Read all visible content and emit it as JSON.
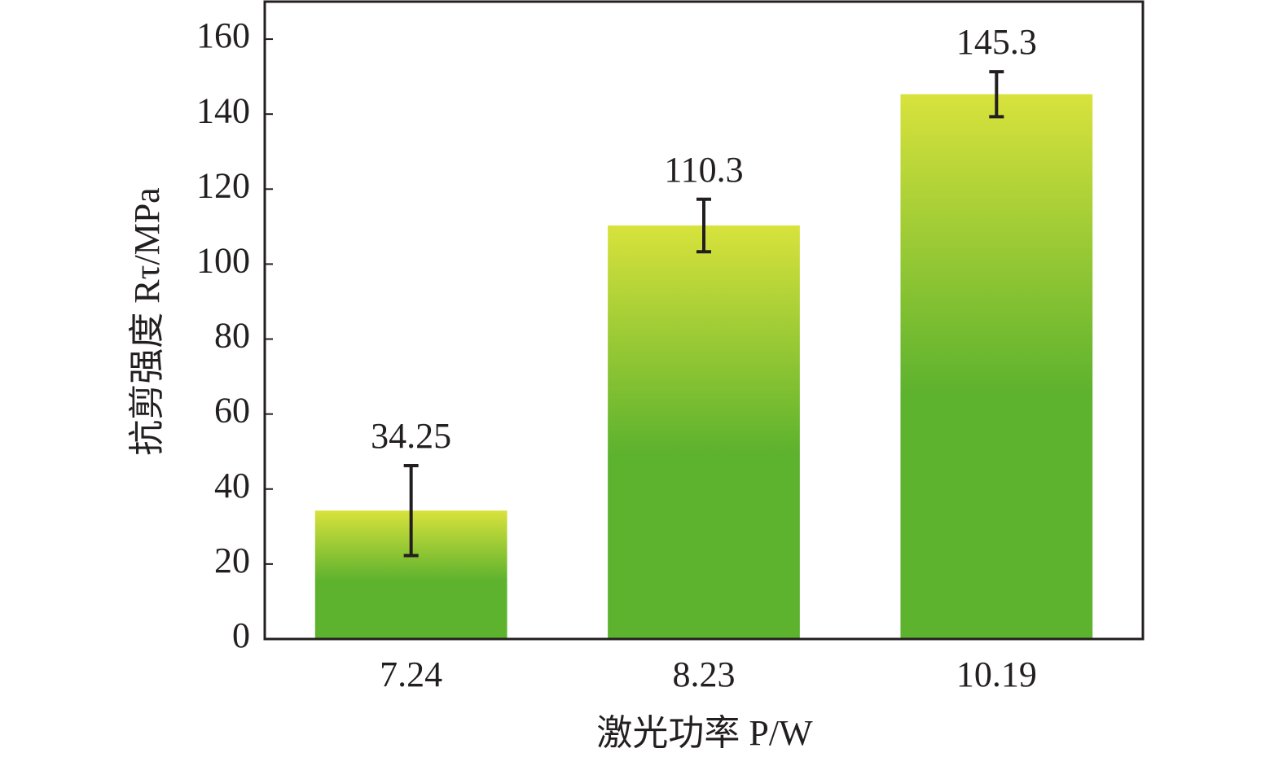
{
  "chart_data": {
    "type": "bar",
    "categories": [
      "7.24",
      "8.23",
      "10.19"
    ],
    "values": [
      34.25,
      110.3,
      145.3
    ],
    "errors": [
      12,
      7,
      6
    ],
    "xlabel": "激光功率 P/W",
    "ylabel": "抗剪强度 Rτ/MPa",
    "ylim": [
      0,
      170
    ],
    "yticks": [
      0,
      20,
      40,
      60,
      80,
      100,
      120,
      140,
      160
    ],
    "colors": [
      "#d8e23c",
      "#5db22e"
    ],
    "grid": false
  }
}
